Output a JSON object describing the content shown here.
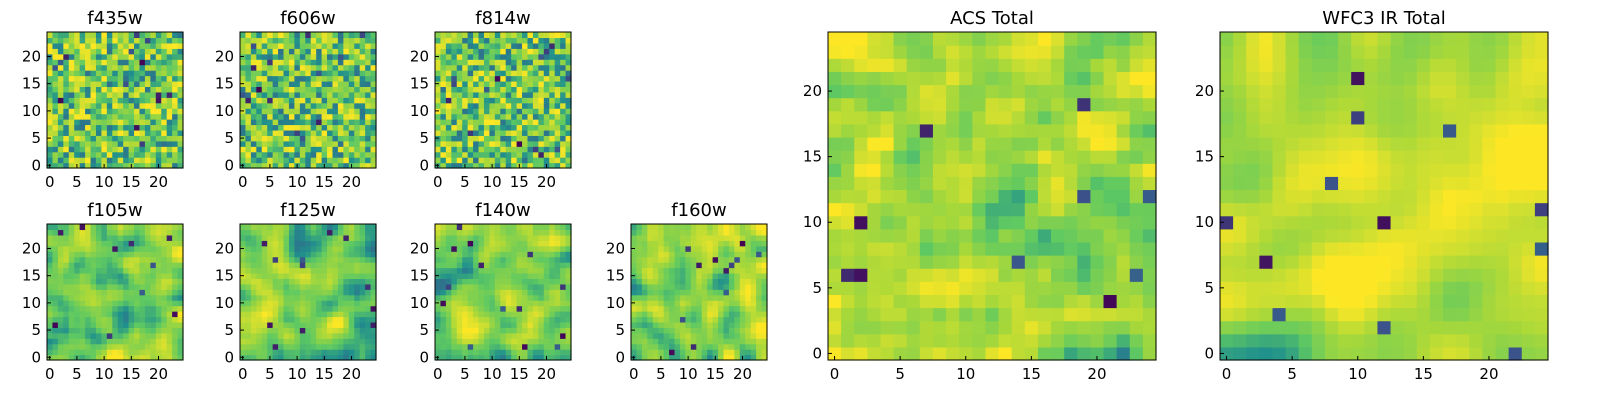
{
  "figure": {
    "description_free": true,
    "colormap_stops": [
      "#440154",
      "#3b528b",
      "#21918c",
      "#5ec962",
      "#a8d83a",
      "#fde725"
    ]
  },
  "chart_data": [
    {
      "type": "heatmap",
      "title": "f435w",
      "grid": [
        25,
        25
      ],
      "xlim": [
        -0.5,
        24.5
      ],
      "ylim": [
        -0.5,
        24.5
      ],
      "xticks": [
        0,
        5,
        10,
        15,
        20
      ],
      "yticks": [
        0,
        5,
        10,
        15,
        20
      ],
      "seed": 11,
      "smooth": 0,
      "bias": 0.0,
      "darks": 14
    },
    {
      "type": "heatmap",
      "title": "f606w",
      "grid": [
        25,
        25
      ],
      "xlim": [
        -0.5,
        24.5
      ],
      "ylim": [
        -0.5,
        24.5
      ],
      "xticks": [
        0,
        5,
        10,
        15,
        20
      ],
      "yticks": [
        0,
        5,
        10,
        15,
        20
      ],
      "seed": 23,
      "smooth": 0,
      "bias": 0.0,
      "darks": 14
    },
    {
      "type": "heatmap",
      "title": "f814w",
      "grid": [
        25,
        25
      ],
      "xlim": [
        -0.5,
        24.5
      ],
      "ylim": [
        -0.5,
        24.5
      ],
      "xticks": [
        0,
        5,
        10,
        15,
        20
      ],
      "yticks": [
        0,
        5,
        10,
        15,
        20
      ],
      "seed": 37,
      "smooth": 0,
      "bias": 0.0,
      "darks": 14
    },
    {
      "type": "heatmap",
      "title": "f105w",
      "grid": [
        25,
        25
      ],
      "xlim": [
        -0.5,
        24.5
      ],
      "ylim": [
        -0.5,
        24.5
      ],
      "xticks": [
        0,
        5,
        10,
        15,
        20
      ],
      "yticks": [
        0,
        5,
        10,
        15,
        20
      ],
      "seed": 41,
      "smooth": 2,
      "bias": 0.05,
      "darks": 10
    },
    {
      "type": "heatmap",
      "title": "f125w",
      "grid": [
        25,
        25
      ],
      "xlim": [
        -0.5,
        24.5
      ],
      "ylim": [
        -0.5,
        24.5
      ],
      "xticks": [
        0,
        5,
        10,
        15,
        20
      ],
      "yticks": [
        0,
        5,
        10,
        15,
        20
      ],
      "seed": 53,
      "smooth": 2,
      "bias": 0.0,
      "darks": 12
    },
    {
      "type": "heatmap",
      "title": "f140w",
      "grid": [
        25,
        25
      ],
      "xlim": [
        -0.5,
        24.5
      ],
      "ylim": [
        -0.5,
        24.5
      ],
      "xticks": [
        0,
        5,
        10,
        15,
        20
      ],
      "yticks": [
        0,
        5,
        10,
        15,
        20
      ],
      "seed": 67,
      "smooth": 2,
      "bias": 0.0,
      "darks": 14
    },
    {
      "type": "heatmap",
      "title": "f160w",
      "grid": [
        25,
        25
      ],
      "xlim": [
        -0.5,
        24.5
      ],
      "ylim": [
        -0.5,
        24.5
      ],
      "xticks": [
        0,
        5,
        10,
        15,
        20
      ],
      "yticks": [
        0,
        5,
        10,
        15,
        20
      ],
      "seed": 79,
      "smooth": 2,
      "bias": 0.05,
      "darks": 12
    },
    {
      "type": "heatmap",
      "title": "ACS Total",
      "grid": [
        25,
        25
      ],
      "xlim": [
        -0.5,
        24.5
      ],
      "ylim": [
        -0.5,
        24.5
      ],
      "xticks": [
        0,
        5,
        10,
        15,
        20
      ],
      "yticks": [
        0,
        5,
        10,
        15,
        20
      ],
      "seed": 83,
      "smooth": 1,
      "bias": 0.05,
      "darks": 10
    },
    {
      "type": "heatmap",
      "title": "WFC3 IR Total",
      "grid": [
        25,
        25
      ],
      "xlim": [
        -0.5,
        24.5
      ],
      "ylim": [
        -0.5,
        24.5
      ],
      "xticks": [
        0,
        5,
        10,
        15,
        20
      ],
      "yticks": [
        0,
        5,
        10,
        15,
        20
      ],
      "seed": 97,
      "smooth": 3,
      "bias": 0.1,
      "darks": 12
    }
  ]
}
